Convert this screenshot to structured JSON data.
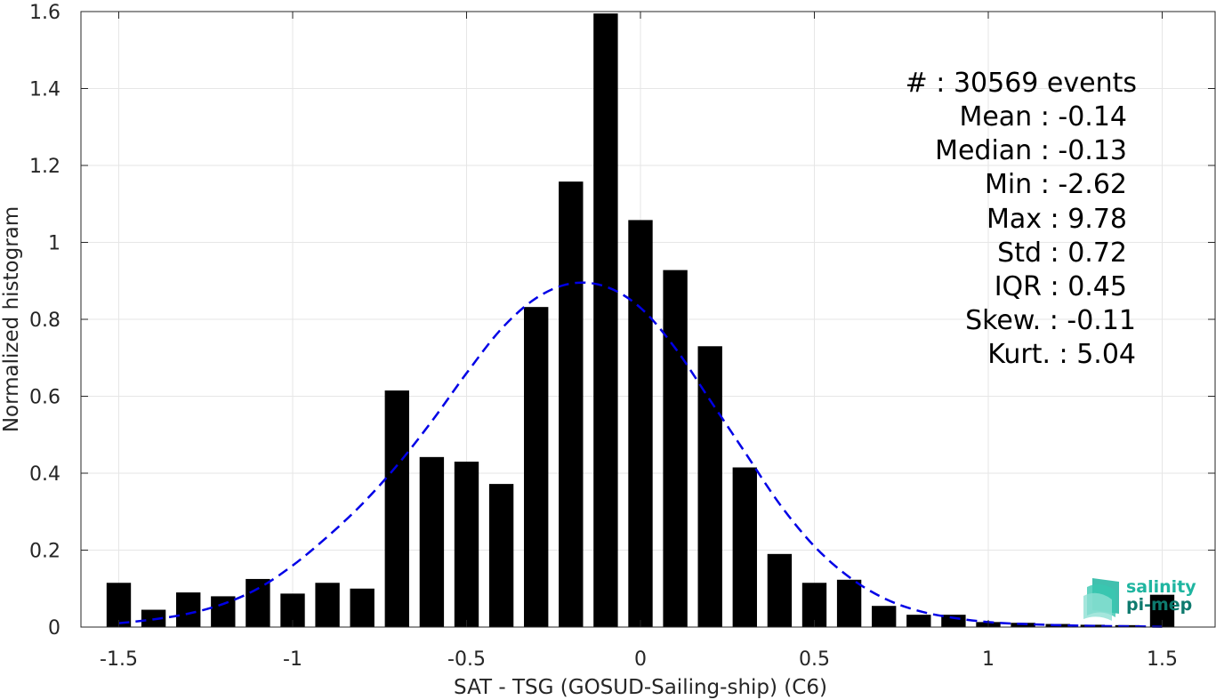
{
  "chart_data": {
    "type": "bar",
    "xlabel": "SAT - TSG (GOSUD-Sailing-ship) (C6)",
    "ylabel": "Normalized histogram",
    "xlim": [
      -1.55,
      1.55
    ],
    "ylim": [
      0,
      1.6
    ],
    "x_ticks": [
      {
        "value": -1.5,
        "label": "-1.5"
      },
      {
        "value": -1,
        "label": "-1"
      },
      {
        "value": -0.5,
        "label": "-0.5"
      },
      {
        "value": 0,
        "label": "0"
      },
      {
        "value": 0.5,
        "label": "0.5"
      },
      {
        "value": 1,
        "label": "1"
      },
      {
        "value": 1.5,
        "label": "1.5"
      }
    ],
    "y_ticks": [
      {
        "value": 0,
        "label": "0"
      },
      {
        "value": 0.2,
        "label": "0.2"
      },
      {
        "value": 0.4,
        "label": "0.4"
      },
      {
        "value": 0.6,
        "label": "0.6"
      },
      {
        "value": 0.8,
        "label": "0.8"
      },
      {
        "value": 1,
        "label": "1"
      },
      {
        "value": 1.2,
        "label": "1.2"
      },
      {
        "value": 1.4,
        "label": "1.4"
      },
      {
        "value": 1.6,
        "label": "1.6"
      }
    ],
    "grid": true,
    "bin_width": 0.07,
    "x": [
      -1.5,
      -1.4,
      -1.3,
      -1.2,
      -1.1,
      -1.0,
      -0.9,
      -0.8,
      -0.7,
      -0.6,
      -0.5,
      -0.4,
      -0.3,
      -0.2,
      -0.1,
      0.0,
      0.1,
      0.2,
      0.3,
      0.4,
      0.5,
      0.6,
      0.7,
      0.8,
      0.9,
      1.0,
      1.1,
      1.2,
      1.3,
      1.4,
      1.5
    ],
    "values": [
      0.115,
      0.045,
      0.09,
      0.08,
      0.125,
      0.087,
      0.115,
      0.1,
      0.615,
      0.442,
      0.43,
      0.372,
      0.832,
      1.158,
      1.595,
      1.058,
      0.928,
      0.73,
      0.415,
      0.19,
      0.115,
      0.123,
      0.055,
      0.032,
      0.032,
      0.013,
      0.011,
      0.008,
      0.006,
      0.005,
      0.084
    ],
    "bar_color": "#000000",
    "fit_curve": {
      "style": "dashed",
      "color": "#0000e6",
      "x": [
        -1.5,
        -1.4,
        -1.3,
        -1.2,
        -1.1,
        -1.0,
        -0.9,
        -0.8,
        -0.7,
        -0.6,
        -0.5,
        -0.4,
        -0.3,
        -0.2,
        -0.1,
        0.0,
        0.1,
        0.2,
        0.3,
        0.4,
        0.5,
        0.6,
        0.7,
        0.8,
        0.9,
        1.0,
        1.1,
        1.2,
        1.3,
        1.4,
        1.5
      ],
      "y": [
        0.01,
        0.02,
        0.035,
        0.06,
        0.1,
        0.16,
        0.235,
        0.32,
        0.42,
        0.535,
        0.66,
        0.775,
        0.855,
        0.893,
        0.885,
        0.83,
        0.725,
        0.59,
        0.455,
        0.32,
        0.21,
        0.13,
        0.075,
        0.042,
        0.024,
        0.013,
        0.008,
        0.005,
        0.003,
        0.002,
        0.001
      ]
    }
  },
  "stats": [
    {
      "label": "#  : 30569 events"
    },
    {
      "label": "Mean : -0.14"
    },
    {
      "label": "Median : -0.13"
    },
    {
      "label": "Min : -2.62"
    },
    {
      "label": "Max : 9.78"
    },
    {
      "label": "Std : 0.72"
    },
    {
      "label": "IQR : 0.45"
    },
    {
      "label": "Skew. : -0.11"
    },
    {
      "label": "Kurt. : 5.04"
    }
  ],
  "logo": {
    "line1": "salinity",
    "line2": "pi-mep",
    "color1": "#1fb5a0",
    "color2": "#0e7a6e"
  }
}
